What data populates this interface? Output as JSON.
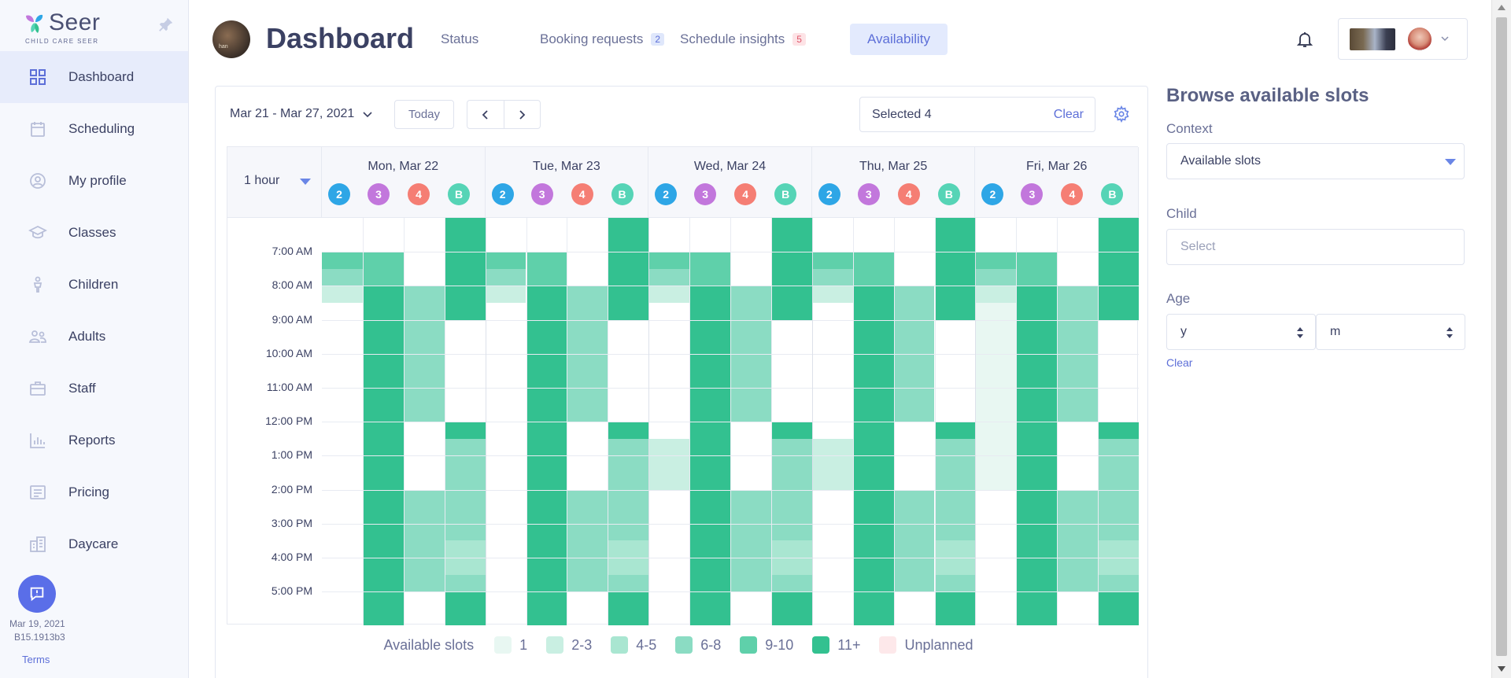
{
  "brand": {
    "name": "Seer",
    "tagline": "CHILD CARE SEER"
  },
  "sidebar": {
    "items": [
      {
        "label": "Dashboard",
        "icon": "grid-icon"
      },
      {
        "label": "Scheduling",
        "icon": "calendar-icon"
      },
      {
        "label": "My profile",
        "icon": "user-circle-icon"
      },
      {
        "label": "Classes",
        "icon": "graduation-cap-icon"
      },
      {
        "label": "Children",
        "icon": "child-icon"
      },
      {
        "label": "Adults",
        "icon": "people-icon"
      },
      {
        "label": "Staff",
        "icon": "briefcase-icon"
      },
      {
        "label": "Reports",
        "icon": "bar-chart-icon"
      },
      {
        "label": "Pricing",
        "icon": "price-list-icon"
      },
      {
        "label": "Daycare",
        "icon": "building-icon"
      }
    ],
    "date": "Mar 19, 2021",
    "build": "B15.1913b3",
    "terms": "Terms"
  },
  "header": {
    "title": "Dashboard",
    "avatar_text": "han",
    "tabs": [
      {
        "label": "Status",
        "badge": ""
      },
      {
        "label": "Booking requests",
        "badge": "2"
      },
      {
        "label": "Schedule insights",
        "badge": "5"
      },
      {
        "label": "Availability",
        "badge": ""
      }
    ]
  },
  "calendar": {
    "range": "Mar 21 - Mar 27, 2021",
    "today": "Today",
    "selected": "Selected 4",
    "clear": "Clear",
    "interval": "1 hour",
    "days": [
      "Mon, Mar 22",
      "Tue, Mar 23",
      "Wed, Mar 24",
      "Thu, Mar 25",
      "Fri, Mar 26"
    ],
    "groups": [
      {
        "label": "2",
        "color": "#2ea6e6"
      },
      {
        "label": "3",
        "color": "#c277dc"
      },
      {
        "label": "4",
        "color": "#f57e74"
      },
      {
        "label": "B",
        "color": "#56d4b6"
      }
    ],
    "times": [
      "7:00 AM",
      "8:00 AM",
      "9:00 AM",
      "10:00 AM",
      "11:00 AM",
      "12:00 PM",
      "1:00 PM",
      "2:00 PM",
      "3:00 PM",
      "4:00 PM",
      "5:00 PM"
    ],
    "level_colors": [
      "#e8f7f2",
      "#c9efe2",
      "#a9e6d1",
      "#8bdcc3",
      "#5fd0aa",
      "#33c190"
    ],
    "availability": [
      [
        [
          [
            1,
            1.5,
            4
          ],
          [
            1.5,
            2,
            3
          ],
          [
            2,
            2.5,
            1
          ]
        ],
        [
          [
            1,
            2,
            4
          ],
          [
            2,
            12,
            5
          ]
        ],
        [
          [
            2,
            6,
            3
          ],
          [
            8,
            11,
            3
          ]
        ],
        [
          [
            0,
            3,
            5
          ],
          [
            6,
            6.5,
            5
          ],
          [
            6.5,
            9.5,
            3
          ],
          [
            9.5,
            10.5,
            2
          ],
          [
            10.5,
            11,
            3
          ],
          [
            11,
            12,
            5
          ]
        ]
      ],
      [
        [
          [
            1,
            1.5,
            4
          ],
          [
            1.5,
            2,
            3
          ],
          [
            2,
            2.5,
            1
          ]
        ],
        [
          [
            1,
            2,
            4
          ],
          [
            2,
            12,
            5
          ]
        ],
        [
          [
            2,
            6,
            3
          ],
          [
            8,
            11,
            3
          ]
        ],
        [
          [
            0,
            3,
            5
          ],
          [
            6,
            6.5,
            5
          ],
          [
            6.5,
            9.5,
            3
          ],
          [
            9.5,
            10.5,
            2
          ],
          [
            10.5,
            11,
            3
          ],
          [
            11,
            12,
            5
          ]
        ]
      ],
      [
        [
          [
            1,
            1.5,
            4
          ],
          [
            1.5,
            2,
            3
          ],
          [
            2,
            2.5,
            1
          ],
          [
            6.5,
            8,
            1
          ]
        ],
        [
          [
            1,
            2,
            4
          ],
          [
            2,
            12,
            5
          ]
        ],
        [
          [
            2,
            6,
            3
          ],
          [
            8,
            11,
            3
          ]
        ],
        [
          [
            0,
            3,
            5
          ],
          [
            6,
            6.5,
            5
          ],
          [
            6.5,
            9.5,
            3
          ],
          [
            9.5,
            10.5,
            2
          ],
          [
            10.5,
            11,
            3
          ],
          [
            11,
            12,
            5
          ]
        ]
      ],
      [
        [
          [
            1,
            1.5,
            4
          ],
          [
            1.5,
            2,
            3
          ],
          [
            2,
            2.5,
            1
          ],
          [
            6.5,
            8,
            1
          ]
        ],
        [
          [
            1,
            2,
            4
          ],
          [
            2,
            12,
            5
          ]
        ],
        [
          [
            2,
            6,
            3
          ],
          [
            8,
            11,
            3
          ]
        ],
        [
          [
            0,
            3,
            5
          ],
          [
            6,
            6.5,
            5
          ],
          [
            6.5,
            9.5,
            3
          ],
          [
            9.5,
            10.5,
            2
          ],
          [
            10.5,
            11,
            3
          ],
          [
            11,
            12,
            5
          ]
        ]
      ],
      [
        [
          [
            1,
            1.5,
            4
          ],
          [
            1.5,
            2,
            3
          ],
          [
            2,
            2.5,
            1
          ],
          [
            2.5,
            8,
            0
          ]
        ],
        [
          [
            1,
            2,
            4
          ],
          [
            2,
            12,
            5
          ]
        ],
        [
          [
            2,
            6,
            3
          ],
          [
            8,
            11,
            3
          ]
        ],
        [
          [
            0,
            3,
            5
          ],
          [
            6,
            6.5,
            5
          ],
          [
            6.5,
            9.5,
            3
          ],
          [
            9.5,
            10.5,
            2
          ],
          [
            10.5,
            11,
            3
          ],
          [
            11,
            12,
            5
          ]
        ]
      ]
    ],
    "legend": {
      "title": "Available slots",
      "items": [
        {
          "label": "1",
          "color": "#e8f7f2"
        },
        {
          "label": "2-3",
          "color": "#c9efe2"
        },
        {
          "label": "4-5",
          "color": "#a9e6d1"
        },
        {
          "label": "6-8",
          "color": "#8bdcc3"
        },
        {
          "label": "9-10",
          "color": "#5fd0aa"
        },
        {
          "label": "11+",
          "color": "#33c190"
        },
        {
          "label": "Unplanned",
          "color": "#fde8ea"
        }
      ]
    }
  },
  "panel": {
    "title": "Browse available slots",
    "context_label": "Context",
    "context_value": "Available slots",
    "child_label": "Child",
    "child_placeholder": "Select",
    "age_label": "Age",
    "age_years": "y",
    "age_months": "m",
    "clear": "Clear"
  }
}
